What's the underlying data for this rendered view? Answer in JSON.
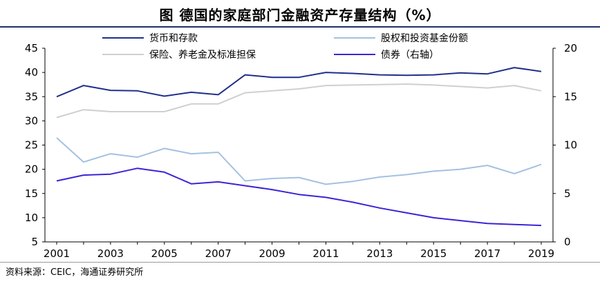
{
  "header": {
    "title": "图  德国的家庭部门金融资产存量结构（%）"
  },
  "footer": {
    "source": "资料来源：CEIC，海通证券研究所"
  },
  "chart_data": {
    "type": "line",
    "title": "图  德国的家庭部门金融资产存量结构（%）",
    "x": [
      2001,
      2002,
      2003,
      2004,
      2005,
      2006,
      2007,
      2008,
      2009,
      2010,
      2011,
      2012,
      2013,
      2014,
      2015,
      2016,
      2017,
      2018,
      2019
    ],
    "xticks": [
      "2001",
      "2003",
      "2005",
      "2007",
      "2009",
      "2011",
      "2013",
      "2015",
      "2017",
      "2019"
    ],
    "y_left": {
      "ylim": [
        5,
        45
      ],
      "ticks": [
        "5",
        "10",
        "15",
        "20",
        "25",
        "30",
        "35",
        "40",
        "45"
      ]
    },
    "y_right": {
      "ylim": [
        0,
        20
      ],
      "ticks": [
        "0",
        "5",
        "10",
        "15",
        "20"
      ]
    },
    "grid": false,
    "legend": "top",
    "series": [
      {
        "name": "货币和存款",
        "axis": "left",
        "color": "#1f2f8a",
        "values": [
          35.0,
          37.3,
          36.3,
          36.2,
          35.1,
          35.9,
          35.4,
          39.5,
          39.0,
          39.0,
          40.0,
          39.8,
          39.5,
          39.4,
          39.5,
          39.9,
          39.7,
          41.0,
          40.2
        ]
      },
      {
        "name": "股权和投资基金份额",
        "axis": "left",
        "color": "#a3c1e0",
        "values": [
          26.5,
          21.5,
          23.2,
          22.5,
          24.3,
          23.2,
          23.5,
          17.6,
          18.1,
          18.3,
          16.9,
          17.5,
          18.4,
          18.9,
          19.6,
          20.0,
          20.8,
          19.1,
          21.0
        ]
      },
      {
        "name": "保险、养老金及标准担保",
        "axis": "left",
        "color": "#cfcfcf",
        "values": [
          30.7,
          32.3,
          31.9,
          31.9,
          31.9,
          33.5,
          33.5,
          35.8,
          36.2,
          36.6,
          37.3,
          37.4,
          37.5,
          37.6,
          37.4,
          37.1,
          36.8,
          37.3,
          36.2
        ]
      },
      {
        "name": "债券（右轴）",
        "axis": "right",
        "color": "#3a24d6",
        "values": [
          6.3,
          6.9,
          7.0,
          7.6,
          7.2,
          6.0,
          6.2,
          5.8,
          5.4,
          4.9,
          4.6,
          4.1,
          3.5,
          3.0,
          2.5,
          2.2,
          1.9,
          1.8,
          1.7
        ]
      }
    ]
  }
}
